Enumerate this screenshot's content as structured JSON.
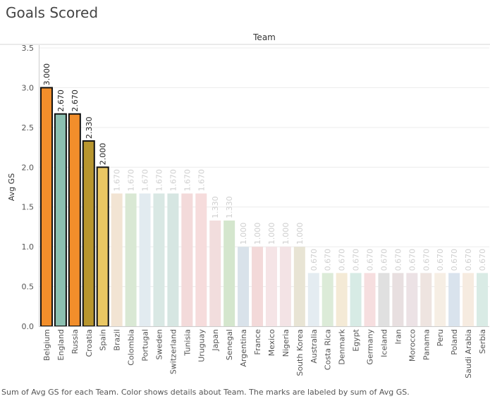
{
  "title": "Goals Scored",
  "caption": "Sum of Avg GS for each Team.  Color shows details about Team.  The marks are labeled by sum of Avg GS.",
  "chart_data": {
    "type": "bar",
    "header": "Team",
    "ylabel": "Avg GS",
    "ylim": [
      0,
      3.5
    ],
    "yticks": [
      "0.0",
      "0.5",
      "1.0",
      "1.5",
      "2.0",
      "2.5",
      "3.0",
      "3.5"
    ],
    "highlighted_count": 5,
    "categories": [
      "Belgium",
      "England",
      "Russia",
      "Croatia",
      "Spain",
      "Brazil",
      "Colombia",
      "Portugal",
      "Sweden",
      "Switzerland",
      "Tunisia",
      "Uruguay",
      "Japan",
      "Senegal",
      "Argentina",
      "France",
      "Mexico",
      "Nigeria",
      "South Korea",
      "Australia",
      "Costa Rica",
      "Denmark",
      "Egypt",
      "Germany",
      "Iceland",
      "Iran",
      "Morocco",
      "Panama",
      "Peru",
      "Poland",
      "Saudi Arabia",
      "Serbia"
    ],
    "values": [
      3.0,
      2.67,
      2.67,
      2.33,
      2.0,
      1.67,
      1.67,
      1.67,
      1.67,
      1.67,
      1.67,
      1.67,
      1.33,
      1.33,
      1.0,
      1.0,
      1.0,
      1.0,
      1.0,
      0.67,
      0.67,
      0.67,
      0.67,
      0.67,
      0.67,
      0.67,
      0.67,
      0.67,
      0.67,
      0.67,
      0.67,
      0.67
    ],
    "labels": [
      "3.000",
      "2.670",
      "2.670",
      "2.330",
      "2.000",
      "1.670",
      "1.670",
      "1.670",
      "1.670",
      "1.670",
      "1.670",
      "1.670",
      "1.330",
      "1.330",
      "1.000",
      "1.000",
      "1.000",
      "1.000",
      "1.000",
      "0.670",
      "0.670",
      "0.670",
      "0.670",
      "0.670",
      "0.670",
      "0.670",
      "0.670",
      "0.670",
      "0.670",
      "0.670",
      "0.670",
      "0.670"
    ],
    "colors": [
      "#f28e2b",
      "#8cc0b1",
      "#f28e2b",
      "#b8962e",
      "#eac763",
      "#f2e4d3",
      "#d9e8d4",
      "#e2ebf0",
      "#d9e8e4",
      "#d6e6e2",
      "#f3dada",
      "#f6dcdc",
      "#f2dddd",
      "#d4e6cd",
      "#d9e2ea",
      "#f3d9d9",
      "#f5e4e6",
      "#f3e3e5",
      "#e8e4d4",
      "#e4ecf1",
      "#dcebd8",
      "#f4ead6",
      "#d7ebe5",
      "#f6dedf",
      "#e0e0e0",
      "#e8dfe0",
      "#ece2e5",
      "#eee4e0",
      "#f6eee4",
      "#d9e3ed",
      "#f6ebe0",
      "#d9ebe5"
    ]
  }
}
